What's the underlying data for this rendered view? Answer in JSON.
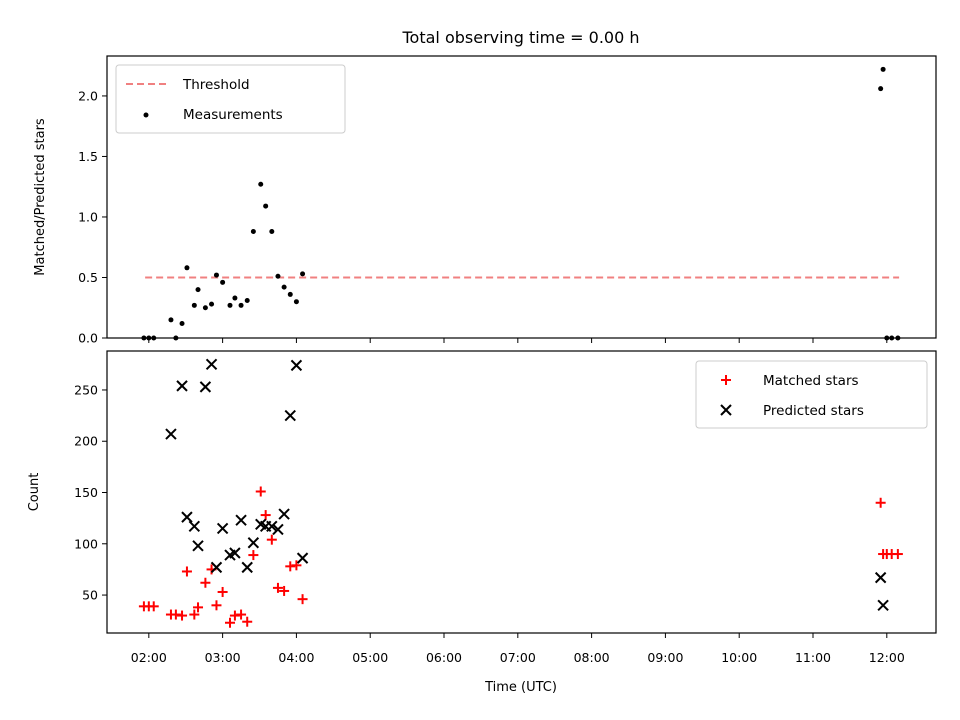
{
  "chart_data": [
    {
      "type": "scatter",
      "title": "Total observing time = 0.00 h",
      "xlabel": "",
      "ylabel": "Matched/Predicted stars",
      "ylim": [
        0,
        2.33
      ],
      "yticks": [
        0.0,
        0.5,
        1.0,
        1.5,
        2.0
      ],
      "ytick_labels": [
        "0.0",
        "0.5",
        "1.0",
        "1.5",
        "2.0"
      ],
      "legend_position": "upper left",
      "threshold": {
        "name": "Threshold",
        "value": 0.5,
        "x_start": "01:57",
        "x_end": "12:10",
        "color": "#f08080"
      },
      "series": [
        {
          "name": "Measurements",
          "color": "#000000",
          "points": [
            [
              "01:56",
              0.0
            ],
            [
              "02:00",
              0.0
            ],
            [
              "02:04",
              0.0
            ],
            [
              "02:18",
              0.15
            ],
            [
              "02:22",
              0.0
            ],
            [
              "02:27",
              0.12
            ],
            [
              "02:31",
              0.58
            ],
            [
              "02:37",
              0.27
            ],
            [
              "02:40",
              0.4
            ],
            [
              "02:46",
              0.25
            ],
            [
              "02:51",
              0.28
            ],
            [
              "02:55",
              0.52
            ],
            [
              "03:00",
              0.46
            ],
            [
              "03:06",
              0.27
            ],
            [
              "03:10",
              0.33
            ],
            [
              "03:15",
              0.27
            ],
            [
              "03:20",
              0.31
            ],
            [
              "03:25",
              0.88
            ],
            [
              "03:31",
              1.27
            ],
            [
              "03:35",
              1.09
            ],
            [
              "03:40",
              0.88
            ],
            [
              "03:45",
              0.51
            ],
            [
              "03:50",
              0.42
            ],
            [
              "03:55",
              0.36
            ],
            [
              "04:00",
              0.3
            ],
            [
              "04:05",
              0.53
            ],
            [
              "11:55",
              2.06
            ],
            [
              "11:57",
              2.22
            ],
            [
              "12:00",
              0.0
            ],
            [
              "12:04",
              0.0
            ],
            [
              "12:09",
              0.0
            ]
          ]
        }
      ]
    },
    {
      "type": "scatter",
      "title": "",
      "xlabel": "Time (UTC)",
      "ylabel": "Count",
      "ylim": [
        13,
        288
      ],
      "yticks": [
        50,
        100,
        150,
        200,
        250
      ],
      "ytick_labels": [
        "50",
        "100",
        "150",
        "200",
        "250"
      ],
      "xlim": [
        "01:26",
        "12:40"
      ],
      "xticks": [
        "02:00",
        "03:00",
        "04:00",
        "05:00",
        "06:00",
        "07:00",
        "08:00",
        "09:00",
        "10:00",
        "11:00",
        "12:00"
      ],
      "legend_position": "upper right",
      "series": [
        {
          "name": "Matched stars",
          "marker": "plus",
          "color": "#ff0000",
          "points": [
            [
              "01:56",
              39
            ],
            [
              "02:00",
              39
            ],
            [
              "02:04",
              39
            ],
            [
              "02:18",
              31
            ],
            [
              "02:22",
              31
            ],
            [
              "02:27",
              30
            ],
            [
              "02:31",
              73
            ],
            [
              "02:37",
              31
            ],
            [
              "02:40",
              38
            ],
            [
              "02:46",
              62
            ],
            [
              "02:51",
              75
            ],
            [
              "02:55",
              40
            ],
            [
              "03:00",
              53
            ],
            [
              "03:06",
              23
            ],
            [
              "03:10",
              30
            ],
            [
              "03:15",
              31
            ],
            [
              "03:20",
              24
            ],
            [
              "03:25",
              89
            ],
            [
              "03:31",
              151
            ],
            [
              "03:35",
              128
            ],
            [
              "03:40",
              104
            ],
            [
              "03:45",
              57
            ],
            [
              "03:50",
              54
            ],
            [
              "03:55",
              78
            ],
            [
              "04:00",
              79
            ],
            [
              "04:05",
              46
            ],
            [
              "11:55",
              140
            ],
            [
              "11:57",
              90
            ],
            [
              "12:00",
              90
            ],
            [
              "12:04",
              90
            ],
            [
              "12:09",
              90
            ]
          ]
        },
        {
          "name": "Predicted stars",
          "marker": "x",
          "color": "#000000",
          "points": [
            [
              "02:18",
              207
            ],
            [
              "02:27",
              254
            ],
            [
              "02:31",
              126
            ],
            [
              "02:37",
              117
            ],
            [
              "02:40",
              98
            ],
            [
              "02:46",
              253
            ],
            [
              "02:51",
              275
            ],
            [
              "02:55",
              77
            ],
            [
              "03:00",
              115
            ],
            [
              "03:06",
              89
            ],
            [
              "03:10",
              91
            ],
            [
              "03:15",
              123
            ],
            [
              "03:20",
              77
            ],
            [
              "03:25",
              101
            ],
            [
              "03:31",
              119
            ],
            [
              "03:35",
              117
            ],
            [
              "03:40",
              117
            ],
            [
              "03:45",
              114
            ],
            [
              "03:50",
              129
            ],
            [
              "03:55",
              225
            ],
            [
              "04:00",
              274
            ],
            [
              "04:05",
              86
            ],
            [
              "11:55",
              67
            ],
            [
              "11:57",
              40
            ]
          ]
        }
      ]
    }
  ]
}
